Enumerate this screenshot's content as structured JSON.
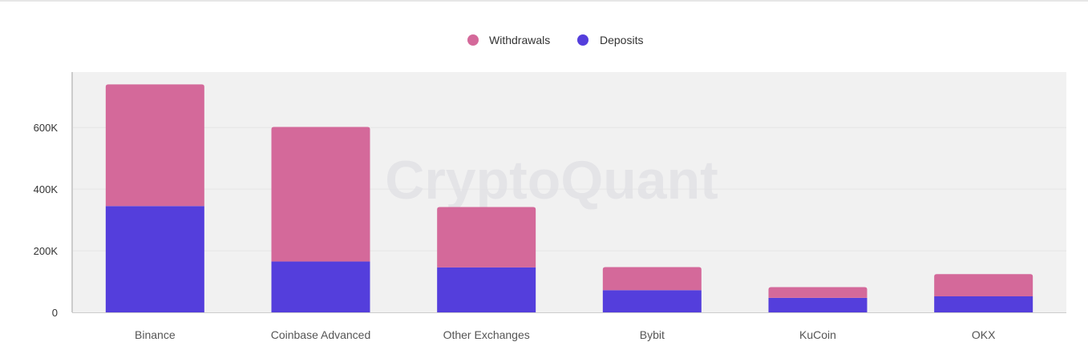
{
  "watermark": "CryptoQuant",
  "colors": {
    "withdrawals": "#d4699a",
    "deposits": "#543edc",
    "plot_bg": "#f1f1f1",
    "axis_text": "#333333",
    "category_text": "#555555"
  },
  "chart_data": {
    "type": "bar",
    "stacked": true,
    "categories": [
      "Binance",
      "Coinbase Advanced",
      "Other Exchanges",
      "Bybit",
      "KuCoin",
      "OKX"
    ],
    "series": [
      {
        "name": "Deposits",
        "color": "#543edc",
        "values": [
          345000,
          165000,
          146000,
          72000,
          47000,
          52000
        ]
      },
      {
        "name": "Withdrawals",
        "color": "#d4699a",
        "values": [
          395000,
          437000,
          196000,
          75000,
          35000,
          72000
        ]
      }
    ],
    "legend_order": [
      "Withdrawals",
      "Deposits"
    ],
    "legend_position": "top-center",
    "yticks": [
      0,
      200000,
      400000,
      600000
    ],
    "ytick_labels": [
      "0",
      "200K",
      "400K",
      "600K"
    ],
    "ylim": [
      0,
      780000
    ],
    "grid": true,
    "title": "",
    "xlabel": "",
    "ylabel": ""
  }
}
